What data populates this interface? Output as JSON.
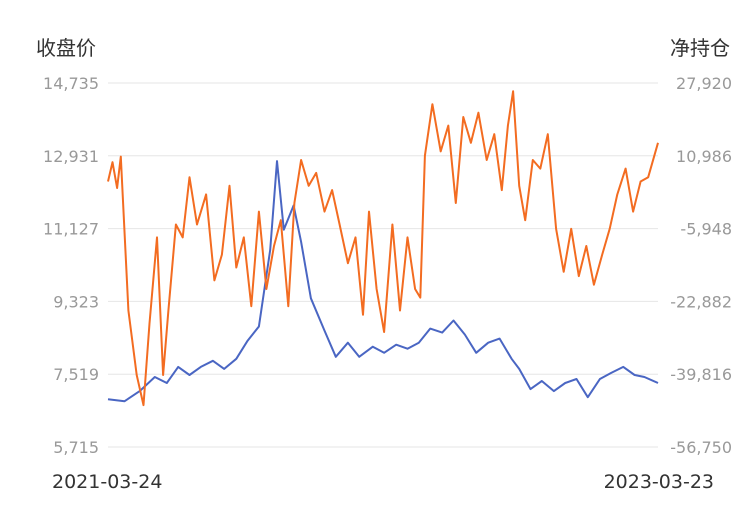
{
  "chart_data": {
    "type": "line",
    "left_axis_title": "收盘价",
    "right_axis_title": "净持仓",
    "left_ticks": [
      "14,735",
      "12,931",
      "11,127",
      "9,323",
      "7,519",
      "5,715"
    ],
    "right_ticks": [
      "27,920",
      "10,986",
      "-5,948",
      "-22,882",
      "-39,816",
      "-56,750"
    ],
    "left_range": [
      5715,
      14735
    ],
    "right_range": [
      -56750,
      27920
    ],
    "x_start_label": "2021-03-24",
    "x_end_label": "2023-03-23",
    "grid": true,
    "series": [
      {
        "axis": "left",
        "color": "#4a66c3",
        "points": [
          [
            "2021-03-24",
            6900
          ],
          [
            "2021-04-15",
            6850
          ],
          [
            "2021-05-05",
            7100
          ],
          [
            "2021-05-25",
            7450
          ],
          [
            "2021-06-10",
            7300
          ],
          [
            "2021-06-25",
            7700
          ],
          [
            "2021-07-10",
            7500
          ],
          [
            "2021-07-25",
            7700
          ],
          [
            "2021-08-10",
            7850
          ],
          [
            "2021-08-25",
            7650
          ],
          [
            "2021-09-10",
            7900
          ],
          [
            "2021-09-25",
            8350
          ],
          [
            "2021-10-10",
            8700
          ],
          [
            "2021-10-25",
            10600
          ],
          [
            "2021-11-03",
            12800
          ],
          [
            "2021-11-12",
            11100
          ],
          [
            "2021-11-25",
            11700
          ],
          [
            "2021-12-05",
            10800
          ],
          [
            "2021-12-18",
            9400
          ],
          [
            "2022-01-05",
            8600
          ],
          [
            "2022-01-20",
            7950
          ],
          [
            "2022-02-05",
            8300
          ],
          [
            "2022-02-20",
            7950
          ],
          [
            "2022-03-10",
            8200
          ],
          [
            "2022-03-25",
            8050
          ],
          [
            "2022-04-10",
            8250
          ],
          [
            "2022-04-25",
            8150
          ],
          [
            "2022-05-10",
            8300
          ],
          [
            "2022-05-25",
            8650
          ],
          [
            "2022-06-10",
            8550
          ],
          [
            "2022-06-25",
            8850
          ],
          [
            "2022-07-10",
            8500
          ],
          [
            "2022-07-25",
            8050
          ],
          [
            "2022-08-10",
            8300
          ],
          [
            "2022-08-25",
            8400
          ],
          [
            "2022-09-10",
            7900
          ],
          [
            "2022-09-20",
            7650
          ],
          [
            "2022-10-05",
            7150
          ],
          [
            "2022-10-20",
            7350
          ],
          [
            "2022-11-05",
            7100
          ],
          [
            "2022-11-20",
            7300
          ],
          [
            "2022-12-05",
            7400
          ],
          [
            "2022-12-20",
            6950
          ],
          [
            "2023-01-05",
            7400
          ],
          [
            "2023-01-20",
            7550
          ],
          [
            "2023-02-05",
            7700
          ],
          [
            "2023-02-20",
            7500
          ],
          [
            "2023-03-05",
            7450
          ],
          [
            "2023-03-23",
            7300
          ]
        ]
      },
      {
        "axis": "right",
        "color": "#f36c21",
        "points": [
          [
            "2021-03-24",
            5000
          ],
          [
            "2021-03-30",
            9500
          ],
          [
            "2021-04-05",
            3500
          ],
          [
            "2021-04-10",
            10800
          ],
          [
            "2021-04-20",
            -25000
          ],
          [
            "2021-05-01",
            -40000
          ],
          [
            "2021-05-10",
            -47000
          ],
          [
            "2021-05-18",
            -28000
          ],
          [
            "2021-05-28",
            -8000
          ],
          [
            "2021-06-05",
            -40000
          ],
          [
            "2021-06-12",
            -25000
          ],
          [
            "2021-06-22",
            -5000
          ],
          [
            "2021-07-01",
            -8000
          ],
          [
            "2021-07-10",
            6000
          ],
          [
            "2021-07-20",
            -5000
          ],
          [
            "2021-08-01",
            2000
          ],
          [
            "2021-08-12",
            -18000
          ],
          [
            "2021-08-22",
            -12000
          ],
          [
            "2021-09-01",
            4000
          ],
          [
            "2021-09-10",
            -15000
          ],
          [
            "2021-09-20",
            -8000
          ],
          [
            "2021-09-30",
            -24000
          ],
          [
            "2021-10-10",
            -2000
          ],
          [
            "2021-10-20",
            -20000
          ],
          [
            "2021-10-30",
            -10000
          ],
          [
            "2021-11-08",
            -4000
          ],
          [
            "2021-11-18",
            -24000
          ],
          [
            "2021-11-26",
            0
          ],
          [
            "2021-12-05",
            10000
          ],
          [
            "2021-12-15",
            4000
          ],
          [
            "2021-12-25",
            7000
          ],
          [
            "2022-01-05",
            -2000
          ],
          [
            "2022-01-15",
            3000
          ],
          [
            "2022-01-25",
            -5000
          ],
          [
            "2022-02-05",
            -14000
          ],
          [
            "2022-02-15",
            -8000
          ],
          [
            "2022-02-25",
            -26000
          ],
          [
            "2022-03-05",
            -2000
          ],
          [
            "2022-03-15",
            -20000
          ],
          [
            "2022-03-25",
            -30000
          ],
          [
            "2022-04-05",
            -5000
          ],
          [
            "2022-04-15",
            -25000
          ],
          [
            "2022-04-25",
            -8000
          ],
          [
            "2022-05-05",
            -20000
          ],
          [
            "2022-05-12",
            -22000
          ],
          [
            "2022-05-18",
            11000
          ],
          [
            "2022-05-28",
            23000
          ],
          [
            "2022-06-08",
            12000
          ],
          [
            "2022-06-18",
            18000
          ],
          [
            "2022-06-28",
            0
          ],
          [
            "2022-07-08",
            20000
          ],
          [
            "2022-07-18",
            14000
          ],
          [
            "2022-07-28",
            21000
          ],
          [
            "2022-08-08",
            10000
          ],
          [
            "2022-08-18",
            16000
          ],
          [
            "2022-08-28",
            3000
          ],
          [
            "2022-09-05",
            18000
          ],
          [
            "2022-09-12",
            26000
          ],
          [
            "2022-09-20",
            4000
          ],
          [
            "2022-09-28",
            -4000
          ],
          [
            "2022-10-08",
            10000
          ],
          [
            "2022-10-18",
            8000
          ],
          [
            "2022-10-28",
            16000
          ],
          [
            "2022-11-08",
            -6000
          ],
          [
            "2022-11-18",
            -16000
          ],
          [
            "2022-11-28",
            -6000
          ],
          [
            "2022-12-08",
            -17000
          ],
          [
            "2022-12-18",
            -10000
          ],
          [
            "2022-12-28",
            -19000
          ],
          [
            "2023-01-08",
            -12000
          ],
          [
            "2023-01-18",
            -6000
          ],
          [
            "2023-01-28",
            2000
          ],
          [
            "2023-02-08",
            8000
          ],
          [
            "2023-02-18",
            -2000
          ],
          [
            "2023-02-28",
            5000
          ],
          [
            "2023-03-10",
            6000
          ],
          [
            "2023-03-23",
            14000
          ]
        ]
      }
    ]
  }
}
